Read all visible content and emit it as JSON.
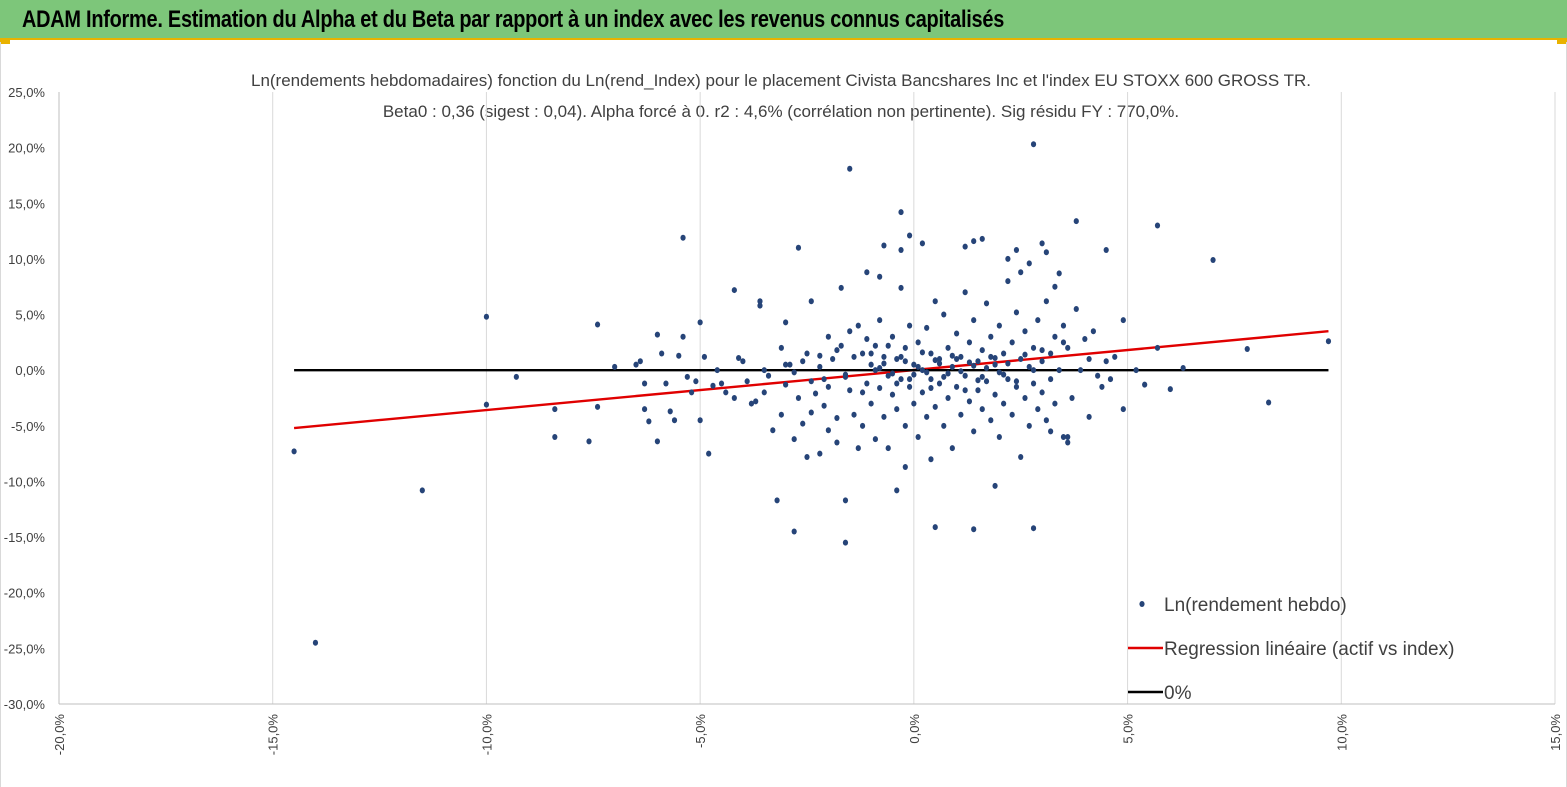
{
  "header": {
    "title": "ADAM Informe. Estimation du Alpha et du Beta par rapport à un index avec les revenus connus capitalisés",
    "background_color": "#7dc67a",
    "accent_color": "#e9b200"
  },
  "chart_data": {
    "type": "scatter",
    "title_line1": "Ln(rendements hebdomadaires) fonction du Ln(rend_Index) pour le placement Civista Bancshares Inc et l'index EU STOXX 600 GROSS TR.",
    "title_line2": "Beta0 : 0,36 (sigest : 0,04).  Alpha forcé à 0. r2 : 4,6% (corrélation non pertinente). Sig résidu FY : 770,0%.",
    "xlim": [
      -0.2,
      0.15
    ],
    "ylim": [
      -0.3,
      0.25
    ],
    "x_ticks": [
      -0.2,
      -0.15,
      -0.1,
      -0.05,
      0.0,
      0.05,
      0.1,
      0.15
    ],
    "x_tick_labels": [
      "-20,0%",
      "-15,0%",
      "-10,0%",
      "-5,0%",
      "0,0%",
      "5,0%",
      "10,0%",
      "15,0%"
    ],
    "y_ticks": [
      0.25,
      0.2,
      0.15,
      0.1,
      0.05,
      0.0,
      -0.05,
      -0.1,
      -0.15,
      -0.2,
      -0.25,
      -0.3
    ],
    "y_tick_labels": [
      "25,0%",
      "20,0%",
      "15,0%",
      "10,0%",
      "5,0%",
      "0,0%",
      "-5,0%",
      "-10,0%",
      "-15,0%",
      "-20,0%",
      "-25,0%",
      "-30,0%"
    ],
    "grid": "vertical",
    "legend_position": "bottom-right",
    "series": [
      {
        "name": "Ln(rendement hebdo)",
        "type": "scatter",
        "color": "#264478",
        "points": [
          [
            -0.145,
            -0.073
          ],
          [
            -0.14,
            -0.245
          ],
          [
            -0.115,
            -0.108
          ],
          [
            -0.1,
            0.048
          ],
          [
            -0.1,
            -0.031
          ],
          [
            -0.093,
            -0.006
          ],
          [
            -0.084,
            -0.035
          ],
          [
            -0.084,
            -0.06
          ],
          [
            -0.076,
            -0.064
          ],
          [
            -0.074,
            0.041
          ],
          [
            -0.074,
            -0.033
          ],
          [
            -0.07,
            0.003
          ],
          [
            -0.065,
            0.005
          ],
          [
            -0.064,
            0.008
          ],
          [
            -0.063,
            -0.012
          ],
          [
            -0.063,
            -0.035
          ],
          [
            -0.062,
            -0.046
          ],
          [
            -0.06,
            0.032
          ],
          [
            -0.06,
            -0.064
          ],
          [
            -0.059,
            0.015
          ],
          [
            -0.058,
            -0.012
          ],
          [
            -0.057,
            -0.037
          ],
          [
            -0.056,
            -0.045
          ],
          [
            -0.055,
            0.013
          ],
          [
            -0.054,
            0.03
          ],
          [
            -0.054,
            0.119
          ],
          [
            -0.053,
            -0.006
          ],
          [
            -0.052,
            -0.02
          ],
          [
            -0.051,
            -0.01
          ],
          [
            -0.05,
            0.043
          ],
          [
            -0.05,
            -0.045
          ],
          [
            -0.049,
            0.012
          ],
          [
            -0.048,
            -0.075
          ],
          [
            -0.047,
            -0.014
          ],
          [
            -0.046,
            0.0
          ],
          [
            -0.045,
            -0.012
          ],
          [
            -0.044,
            -0.02
          ],
          [
            -0.042,
            0.072
          ],
          [
            -0.042,
            -0.025
          ],
          [
            -0.041,
            0.011
          ],
          [
            -0.04,
            0.008
          ],
          [
            -0.039,
            -0.01
          ],
          [
            -0.038,
            -0.03
          ],
          [
            -0.037,
            -0.028
          ],
          [
            -0.036,
            0.058
          ],
          [
            -0.036,
            0.062
          ],
          [
            -0.035,
            -0.02
          ],
          [
            -0.034,
            -0.005
          ],
          [
            -0.033,
            -0.054
          ],
          [
            -0.032,
            -0.117
          ],
          [
            -0.031,
            0.02
          ],
          [
            -0.031,
            -0.04
          ],
          [
            -0.03,
            0.043
          ],
          [
            -0.03,
            -0.013
          ],
          [
            -0.029,
            0.005
          ],
          [
            -0.028,
            -0.062
          ],
          [
            -0.028,
            -0.145
          ],
          [
            -0.027,
            0.11
          ],
          [
            -0.027,
            -0.025
          ],
          [
            -0.026,
            -0.048
          ],
          [
            -0.025,
            -0.078
          ],
          [
            -0.025,
            0.015
          ],
          [
            -0.024,
            0.062
          ],
          [
            -0.024,
            -0.038
          ],
          [
            -0.023,
            -0.021
          ],
          [
            -0.022,
            0.013
          ],
          [
            -0.022,
            -0.075
          ],
          [
            -0.021,
            -0.008
          ],
          [
            -0.021,
            -0.032
          ],
          [
            -0.02,
            0.03
          ],
          [
            -0.02,
            -0.054
          ],
          [
            -0.019,
            0.01
          ],
          [
            -0.018,
            -0.043
          ],
          [
            -0.018,
            -0.065
          ],
          [
            -0.017,
            0.022
          ],
          [
            -0.016,
            -0.006
          ],
          [
            -0.016,
            -0.155
          ],
          [
            -0.015,
            0.035
          ],
          [
            -0.015,
            -0.018
          ],
          [
            -0.014,
            -0.04
          ],
          [
            -0.013,
            0.04
          ],
          [
            -0.013,
            -0.07
          ],
          [
            -0.012,
            0.015
          ],
          [
            -0.012,
            -0.05
          ],
          [
            -0.011,
            0.028
          ],
          [
            -0.011,
            -0.012
          ],
          [
            -0.01,
            -0.03
          ],
          [
            -0.01,
            0.005
          ],
          [
            -0.009,
            -0.062
          ],
          [
            -0.009,
            0.022
          ],
          [
            -0.008,
            -0.016
          ],
          [
            -0.008,
            0.045
          ],
          [
            -0.007,
            -0.042
          ],
          [
            -0.007,
            0.012
          ],
          [
            -0.006,
            -0.005
          ],
          [
            -0.006,
            -0.07
          ],
          [
            -0.005,
            0.03
          ],
          [
            -0.005,
            -0.022
          ],
          [
            -0.004,
            0.01
          ],
          [
            -0.004,
            -0.035
          ],
          [
            -0.003,
            0.074
          ],
          [
            -0.003,
            -0.008
          ],
          [
            -0.002,
            -0.05
          ],
          [
            -0.002,
            0.02
          ],
          [
            -0.001,
            -0.015
          ],
          [
            -0.001,
            0.04
          ],
          [
            0.0,
            -0.03
          ],
          [
            0.0,
            0.005
          ],
          [
            0.001,
            -0.06
          ],
          [
            0.001,
            0.025
          ],
          [
            0.002,
            0.0
          ],
          [
            0.002,
            -0.02
          ],
          [
            0.003,
            0.038
          ],
          [
            0.003,
            -0.042
          ],
          [
            0.004,
            0.015
          ],
          [
            0.004,
            -0.008
          ],
          [
            0.005,
            0.062
          ],
          [
            0.005,
            -0.033
          ],
          [
            0.006,
            0.01
          ],
          [
            0.006,
            -0.012
          ],
          [
            0.007,
            0.05
          ],
          [
            0.007,
            -0.05
          ],
          [
            0.008,
            0.02
          ],
          [
            0.008,
            -0.025
          ],
          [
            0.009,
            0.003
          ],
          [
            0.009,
            -0.07
          ],
          [
            0.01,
            0.033
          ],
          [
            0.01,
            -0.015
          ],
          [
            0.011,
            0.012
          ],
          [
            0.011,
            -0.04
          ],
          [
            0.012,
            0.07
          ],
          [
            0.012,
            -0.005
          ],
          [
            0.013,
            0.025
          ],
          [
            0.013,
            -0.028
          ],
          [
            0.014,
            0.045
          ],
          [
            0.014,
            -0.055
          ],
          [
            0.015,
            0.008
          ],
          [
            0.015,
            -0.018
          ],
          [
            0.016,
            0.018
          ],
          [
            0.016,
            -0.035
          ],
          [
            0.017,
            0.06
          ],
          [
            0.017,
            -0.01
          ],
          [
            0.018,
            0.03
          ],
          [
            0.018,
            -0.045
          ],
          [
            0.019,
            0.005
          ],
          [
            0.019,
            -0.022
          ],
          [
            0.02,
            0.04
          ],
          [
            0.02,
            -0.06
          ],
          [
            0.021,
            0.015
          ],
          [
            0.021,
            -0.03
          ],
          [
            0.022,
            0.08
          ],
          [
            0.022,
            -0.008
          ],
          [
            0.023,
            0.025
          ],
          [
            0.023,
            -0.04
          ],
          [
            0.024,
            0.052
          ],
          [
            0.024,
            -0.015
          ],
          [
            0.025,
            0.01
          ],
          [
            0.025,
            -0.078
          ],
          [
            0.026,
            0.035
          ],
          [
            0.026,
            -0.025
          ],
          [
            0.027,
            0.003
          ],
          [
            0.027,
            -0.05
          ],
          [
            0.028,
            0.02
          ],
          [
            0.028,
            -0.012
          ],
          [
            0.029,
            0.045
          ],
          [
            0.029,
            -0.035
          ],
          [
            0.03,
            0.008
          ],
          [
            0.03,
            -0.02
          ],
          [
            0.031,
            0.062
          ],
          [
            0.031,
            -0.045
          ],
          [
            0.032,
            0.015
          ],
          [
            0.032,
            -0.008
          ],
          [
            0.033,
            0.03
          ],
          [
            0.033,
            -0.03
          ],
          [
            0.034,
            0.0
          ],
          [
            0.035,
            -0.06
          ],
          [
            0.035,
            0.025
          ],
          [
            -0.035,
            0.0
          ],
          [
            -0.03,
            0.005
          ],
          [
            -0.028,
            -0.002
          ],
          [
            -0.026,
            0.008
          ],
          [
            -0.024,
            -0.01
          ],
          [
            -0.022,
            0.003
          ],
          [
            -0.02,
            -0.015
          ],
          [
            -0.018,
            0.018
          ],
          [
            -0.016,
            -0.004
          ],
          [
            -0.014,
            0.012
          ],
          [
            -0.012,
            -0.02
          ],
          [
            -0.01,
            0.015
          ],
          [
            -0.008,
            0.002
          ],
          [
            -0.006,
            0.022
          ],
          [
            -0.004,
            -0.012
          ],
          [
            -0.002,
            0.008
          ],
          [
            0.0,
            -0.004
          ],
          [
            0.002,
            0.016
          ],
          [
            0.004,
            -0.016
          ],
          [
            0.006,
            0.006
          ],
          [
            0.008,
            -0.003
          ],
          [
            0.01,
            0.01
          ],
          [
            0.012,
            -0.018
          ],
          [
            0.014,
            0.004
          ],
          [
            0.016,
            -0.006
          ],
          [
            0.018,
            0.012
          ],
          [
            0.02,
            -0.002
          ],
          [
            0.022,
            0.006
          ],
          [
            0.024,
            -0.01
          ],
          [
            0.026,
            0.014
          ],
          [
            0.028,
            0.0
          ],
          [
            0.03,
            0.018
          ],
          [
            -0.009,
            0.0
          ],
          [
            -0.007,
            0.006
          ],
          [
            -0.005,
            -0.003
          ],
          [
            -0.003,
            0.012
          ],
          [
            -0.001,
            -0.008
          ],
          [
            0.001,
            0.003
          ],
          [
            0.003,
            -0.002
          ],
          [
            0.005,
            0.009
          ],
          [
            0.007,
            -0.006
          ],
          [
            0.009,
            0.013
          ],
          [
            0.011,
            -0.001
          ],
          [
            0.013,
            0.007
          ],
          [
            0.015,
            -0.009
          ],
          [
            0.017,
            0.002
          ],
          [
            0.019,
            0.011
          ],
          [
            0.021,
            -0.004
          ],
          [
            -0.015,
            0.181
          ],
          [
            -0.003,
            0.142
          ],
          [
            -0.001,
            0.121
          ],
          [
            -0.003,
            0.108
          ],
          [
            -0.007,
            0.112
          ],
          [
            -0.017,
            0.074
          ],
          [
            -0.011,
            0.088
          ],
          [
            -0.008,
            0.084
          ],
          [
            -0.016,
            -0.117
          ],
          [
            -0.004,
            -0.108
          ],
          [
            0.005,
            -0.141
          ],
          [
            0.014,
            -0.143
          ],
          [
            0.019,
            -0.104
          ],
          [
            0.004,
            -0.08
          ],
          [
            -0.002,
            -0.087
          ],
          [
            0.002,
            0.114
          ],
          [
            0.012,
            0.111
          ],
          [
            0.014,
            0.116
          ],
          [
            0.016,
            0.118
          ],
          [
            0.028,
            0.203
          ],
          [
            0.024,
            0.108
          ],
          [
            0.022,
            0.1
          ],
          [
            0.03,
            0.114
          ],
          [
            0.031,
            0.106
          ],
          [
            0.038,
            0.134
          ],
          [
            0.045,
            0.108
          ],
          [
            0.049,
            0.045
          ],
          [
            0.052,
            0.0
          ],
          [
            0.054,
            -0.013
          ],
          [
            0.057,
            0.13
          ],
          [
            0.057,
            0.02
          ],
          [
            0.06,
            -0.017
          ],
          [
            0.063,
            0.002
          ],
          [
            0.07,
            0.099
          ],
          [
            0.078,
            0.019
          ],
          [
            0.083,
            -0.029
          ],
          [
            0.097,
            0.026
          ],
          [
            0.028,
            -0.142
          ],
          [
            0.036,
            -0.06
          ],
          [
            0.036,
            -0.065
          ],
          [
            0.041,
            0.01
          ],
          [
            0.043,
            -0.005
          ],
          [
            0.045,
            0.008
          ],
          [
            0.04,
            0.028
          ],
          [
            0.038,
            0.055
          ],
          [
            0.033,
            0.075
          ],
          [
            0.037,
            -0.025
          ],
          [
            0.042,
            0.035
          ],
          [
            0.046,
            -0.008
          ],
          [
            0.049,
            -0.035
          ],
          [
            0.047,
            0.012
          ],
          [
            0.044,
            -0.015
          ],
          [
            0.039,
            0.0
          ],
          [
            0.041,
            -0.042
          ],
          [
            0.035,
            0.04
          ],
          [
            0.034,
            0.087
          ],
          [
            0.027,
            0.096
          ],
          [
            0.025,
            0.088
          ],
          [
            0.036,
            0.02
          ],
          [
            0.032,
            -0.055
          ]
        ]
      },
      {
        "name": "Regression linéaire (actif vs index)",
        "type": "line",
        "color": "#e00000",
        "points": [
          [
            -0.145,
            -0.052
          ],
          [
            0.097,
            0.035
          ]
        ]
      },
      {
        "name": "0%",
        "type": "line",
        "color": "#000000",
        "points": [
          [
            -0.145,
            0.0
          ],
          [
            0.097,
            0.0
          ]
        ]
      }
    ]
  }
}
